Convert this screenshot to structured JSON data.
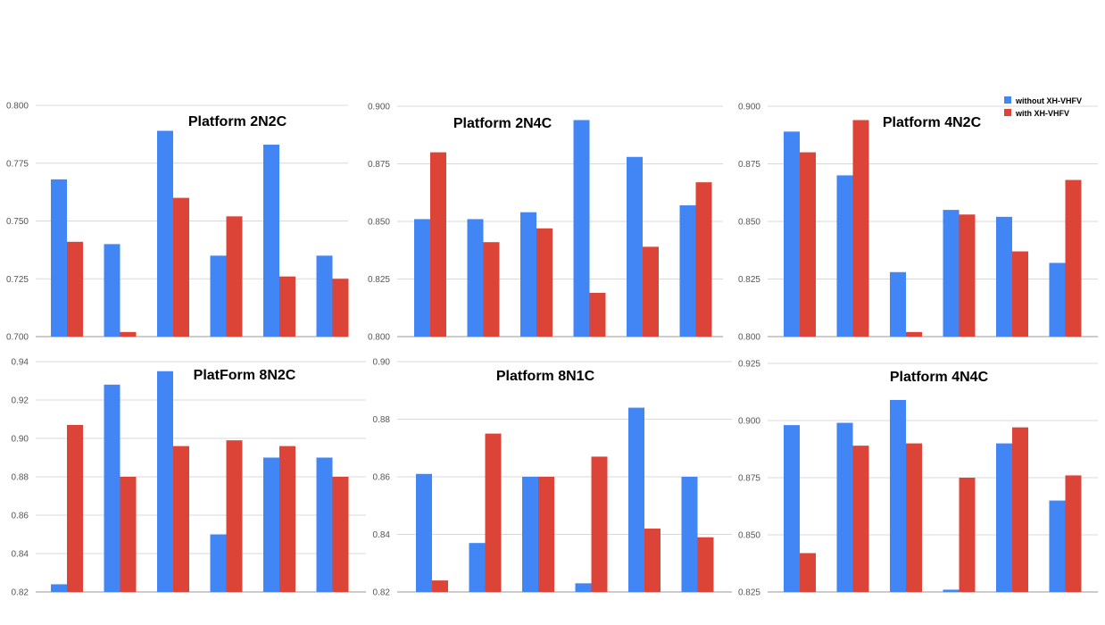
{
  "colors": {
    "without": "#4285f4",
    "with": "#db4437"
  },
  "legend": {
    "placement": "top-right",
    "items": [
      {
        "label": "without XH-VHFV",
        "color": "#4285f4"
      },
      {
        "label": "with XH-VHFV",
        "color": "#db4437"
      }
    ]
  },
  "chart_data": [
    {
      "type": "bar",
      "title": "Platform 2N2C",
      "ylim": [
        0.7,
        0.8
      ],
      "yticks": [
        "0.700",
        "0.725",
        "0.750",
        "0.775",
        "0.800"
      ],
      "series": [
        {
          "name": "without XH-VHFV",
          "values": [
            0.768,
            0.74,
            0.789,
            0.735,
            0.783,
            0.735
          ]
        },
        {
          "name": "with XH-VHFV",
          "values": [
            0.741,
            0.702,
            0.76,
            0.752,
            0.726,
            0.725
          ]
        }
      ]
    },
    {
      "type": "bar",
      "title": "Platform 2N4C",
      "ylim": [
        0.8,
        0.9
      ],
      "yticks": [
        "0.800",
        "0.825",
        "0.850",
        "0.875",
        "0.900"
      ],
      "series": [
        {
          "name": "without XH-VHFV",
          "values": [
            0.851,
            0.851,
            0.854,
            0.894,
            0.878,
            0.857
          ]
        },
        {
          "name": "with XH-VHFV",
          "values": [
            0.88,
            0.841,
            0.847,
            0.819,
            0.839,
            0.867
          ]
        }
      ]
    },
    {
      "type": "bar",
      "title": "Platform 4N2C",
      "ylim": [
        0.8,
        0.9
      ],
      "yticks": [
        "0.800",
        "0.825",
        "0.850",
        "0.875",
        "0.900"
      ],
      "series": [
        {
          "name": "without XH-VHFV",
          "values": [
            0.889,
            0.87,
            0.828,
            0.855,
            0.852,
            0.832
          ]
        },
        {
          "name": "with XH-VHFV",
          "values": [
            0.88,
            0.894,
            0.802,
            0.853,
            0.837,
            0.868
          ]
        }
      ]
    },
    {
      "type": "bar",
      "title": "PlatForm 8N2C",
      "ylim": [
        0.82,
        0.94
      ],
      "yticks": [
        "0.82",
        "0.84",
        "0.86",
        "0.88",
        "0.90",
        "0.92",
        "0.94"
      ],
      "series": [
        {
          "name": "without XH-VHFV",
          "values": [
            0.824,
            0.928,
            0.935,
            0.85,
            0.89,
            0.89
          ]
        },
        {
          "name": "with XH-VHFV",
          "values": [
            0.907,
            0.88,
            0.896,
            0.899,
            0.896,
            0.88
          ]
        }
      ]
    },
    {
      "type": "bar",
      "title": "Platform 8N1C",
      "ylim": [
        0.82,
        0.9
      ],
      "yticks": [
        "0.82",
        "0.84",
        "0.86",
        "0.88",
        "0.90"
      ],
      "series": [
        {
          "name": "without XH-VHFV",
          "values": [
            0.861,
            0.837,
            0.86,
            0.823,
            0.884,
            0.86
          ]
        },
        {
          "name": "with XH-VHFV",
          "values": [
            0.824,
            0.875,
            0.86,
            0.867,
            0.842,
            0.839
          ]
        }
      ]
    },
    {
      "type": "bar",
      "title": "Platform 4N4C",
      "ylim": [
        0.825,
        0.925
      ],
      "yticks": [
        "0.825",
        "0.850",
        "0.875",
        "0.900",
        "0.925"
      ],
      "series": [
        {
          "name": "without XH-VHFV",
          "values": [
            0.898,
            0.899,
            0.909,
            0.826,
            0.89,
            0.865
          ]
        },
        {
          "name": "with XH-VHFV",
          "values": [
            0.842,
            0.889,
            0.89,
            0.875,
            0.897,
            0.876
          ]
        }
      ]
    }
  ]
}
